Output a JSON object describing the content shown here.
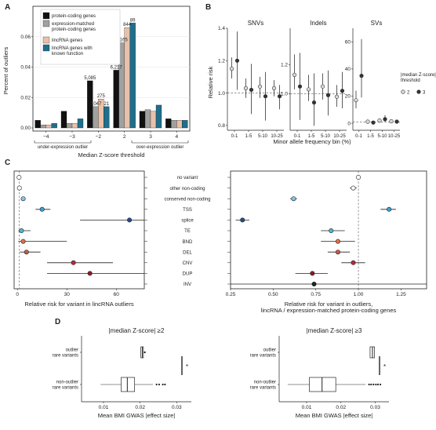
{
  "chart_data": [
    {
      "panel": "A",
      "type": "bar",
      "ylabel": "Percent of outliers",
      "xlabel": "Median Z-score threshold",
      "categories": [
        "−4",
        "−3",
        "−2",
        "2",
        "3",
        "4"
      ],
      "category_values": [
        -4,
        -3,
        -2,
        2,
        3,
        4
      ],
      "ylim": [
        0,
        0.08
      ],
      "yticks": [
        "0.00",
        "0.02",
        "0.04",
        "0.06"
      ],
      "ytick_values": [
        0,
        0.02,
        0.04,
        0.06
      ],
      "group_labels": [
        "under-expression outlier",
        "over-expression outlier"
      ],
      "series": [
        {
          "name": "protein-coding genes",
          "color": "#111111",
          "values": [
            0.005,
            0.011,
            0.031,
            0.038,
            0.011,
            0.006
          ]
        },
        {
          "name": "expression-matched protein-coding genes",
          "color": "#a0a0a0",
          "values": [
            0.002,
            0.003,
            0.014,
            0.056,
            0.012,
            0.005
          ]
        },
        {
          "name": "lincRNA genes",
          "color": "#e8c1a8",
          "values": [
            0.002,
            0.003,
            0.019,
            0.066,
            0.011,
            0.005
          ]
        },
        {
          "name": "lincRNA genes with known function",
          "color": "#1f6e8c",
          "values": [
            0.003,
            0.006,
            0.014,
            0.069,
            0.015,
            0.005
          ]
        }
      ],
      "annotations": [
        {
          "text": "5,085",
          "category": "−2",
          "series": 0
        },
        {
          "text": "1,047",
          "category": "−2",
          "series": 1
        },
        {
          "text": "275",
          "category": "−2",
          "series": 2
        },
        {
          "text": "21",
          "category": "−2",
          "series": 3
        },
        {
          "text": "6,217",
          "category": "2",
          "series": 0
        },
        {
          "text": "3,165",
          "category": "2",
          "series": 1
        },
        {
          "text": "844",
          "category": "2",
          "series": 2
        },
        {
          "text": "89",
          "category": "2",
          "series": 3
        }
      ]
    },
    {
      "panel": "B",
      "type": "scatter",
      "ylabel": "Relative risk",
      "xlabel": "Minor allele frequency bin (%)",
      "x_categories": [
        "0-1",
        "1-5",
        "5-10",
        "10-25"
      ],
      "legend_title": "|median Z-score|\nthreshold",
      "legend_entries": [
        {
          "label": "2",
          "fill": "#d9d9d9"
        },
        {
          "label": "3",
          "fill": "#333333"
        }
      ],
      "facets": [
        {
          "title": "SNVs",
          "ylim": [
            0.78,
            1.4
          ],
          "yticks": [
            "0.8",
            "1.0",
            "1.2",
            "1.4"
          ],
          "ytick_values": [
            0.8,
            1.0,
            1.2,
            1.4
          ],
          "points": [
            {
              "bin": "0-1",
              "threshold": "2",
              "y": 1.15,
              "lo": 1.09,
              "hi": 1.22
            },
            {
              "bin": "0-1",
              "threshold": "3",
              "y": 1.2,
              "lo": 1.02,
              "hi": 1.38
            },
            {
              "bin": "1-5",
              "threshold": "2",
              "y": 1.03,
              "lo": 0.97,
              "hi": 1.09
            },
            {
              "bin": "1-5",
              "threshold": "3",
              "y": 1.02,
              "lo": 0.87,
              "hi": 1.18
            },
            {
              "bin": "5-10",
              "threshold": "2",
              "y": 1.04,
              "lo": 0.97,
              "hi": 1.1
            },
            {
              "bin": "5-10",
              "threshold": "3",
              "y": 0.98,
              "lo": 0.83,
              "hi": 1.13
            },
            {
              "bin": "10-25",
              "threshold": "2",
              "y": 1.03,
              "lo": 0.98,
              "hi": 1.08
            },
            {
              "bin": "10-25",
              "threshold": "3",
              "y": 0.98,
              "lo": 0.9,
              "hi": 1.05
            }
          ]
        },
        {
          "title": "Indels",
          "ylim": [
            0.76,
            1.45
          ],
          "yticks": [
            "1.0",
            "1.2"
          ],
          "ytick_values": [
            1.0,
            1.2
          ],
          "points": [
            {
              "bin": "0-1",
              "threshold": "2",
              "y": 1.13,
              "lo": 1.03,
              "hi": 1.27
            },
            {
              "bin": "0-1",
              "threshold": "3",
              "y": 1.05,
              "lo": 0.82,
              "hi": 1.28
            },
            {
              "bin": "1-5",
              "threshold": "2",
              "y": 1.03,
              "lo": 0.95,
              "hi": 1.13
            },
            {
              "bin": "1-5",
              "threshold": "3",
              "y": 0.94,
              "lo": 0.78,
              "hi": 1.14
            },
            {
              "bin": "5-10",
              "threshold": "2",
              "y": 1.05,
              "lo": 0.96,
              "hi": 1.14
            },
            {
              "bin": "5-10",
              "threshold": "3",
              "y": 0.99,
              "lo": 0.85,
              "hi": 1.16
            },
            {
              "bin": "10-25",
              "threshold": "2",
              "y": 0.98,
              "lo": 0.91,
              "hi": 1.06
            },
            {
              "bin": "10-25",
              "threshold": "3",
              "y": 1.02,
              "lo": 0.9,
              "hi": 1.15
            }
          ]
        },
        {
          "title": "SVs",
          "ylim": [
            -4,
            70
          ],
          "yticks": [
            "0",
            "20",
            "40",
            "60"
          ],
          "ytick_values": [
            0,
            20,
            40,
            60
          ],
          "points": [
            {
              "bin": "0-1",
              "threshold": "2",
              "y": 17,
              "lo": 11,
              "hi": 24
            },
            {
              "bin": "0-1",
              "threshold": "3",
              "y": 35,
              "lo": 19,
              "hi": 62
            },
            {
              "bin": "1-5",
              "threshold": "2",
              "y": 1.2,
              "lo": 0.5,
              "hi": 2
            },
            {
              "bin": "1-5",
              "threshold": "3",
              "y": 0.5,
              "lo": 0,
              "hi": 1.5
            },
            {
              "bin": "5-10",
              "threshold": "2",
              "y": 2,
              "lo": 1,
              "hi": 3.5
            },
            {
              "bin": "5-10",
              "threshold": "3",
              "y": 3,
              "lo": 1,
              "hi": 6
            },
            {
              "bin": "10-25",
              "threshold": "2",
              "y": 1.5,
              "lo": 0.8,
              "hi": 2.5
            },
            {
              "bin": "10-25",
              "threshold": "3",
              "y": 1.2,
              "lo": 0.3,
              "hi": 2.5
            }
          ]
        }
      ]
    },
    {
      "panel": "C",
      "type": "scatter",
      "categories": [
        "no variant",
        "other non-coding",
        "conserved non-coding",
        "TSS",
        "splice",
        "TE",
        "BND",
        "DEL",
        "CNV",
        "DUP",
        "INV"
      ],
      "colors": [
        "#ffffff",
        "#ffffff",
        "#7fc8e6",
        "#3aa0d0",
        "#1f4e8c",
        "#4ab8d8",
        "#e57048",
        "#c85a4a",
        "#b82a3a",
        "#8a1a2a",
        "#222222"
      ],
      "left": {
        "xlabel": "Relative risk for variant in lincRNA outliers",
        "xlim": [
          -2,
          77
        ],
        "xticks": [
          "0",
          "30",
          "60"
        ],
        "xtick_values": [
          0,
          30,
          60
        ],
        "values": [
          1,
          1.2,
          3.5,
          15,
          68,
          2.5,
          3.5,
          5.5,
          34,
          44,
          null
        ],
        "ci_lo": [
          0.9,
          0.8,
          2.5,
          11,
          38,
          0.5,
          0.5,
          1.5,
          18,
          18,
          null
        ],
        "ci_hi": [
          1.1,
          1.6,
          4.5,
          20,
          100,
          8,
          30,
          14,
          58,
          93,
          null
        ]
      },
      "right": {
        "xlabel": "Relative risk for variant in outliers,\nlincRNA / expression-matched protein-coding genes",
        "xlim": [
          0.25,
          1.4
        ],
        "xticks": [
          "0.25",
          "0.50",
          "0.75",
          "1.00",
          "1.25"
        ],
        "xtick_values": [
          0.25,
          0.5,
          0.75,
          1.0,
          1.25
        ],
        "values": [
          1.0,
          0.97,
          0.62,
          1.18,
          0.32,
          0.84,
          0.88,
          0.88,
          0.97,
          0.73,
          0.74
        ],
        "ci_lo": [
          0.99,
          0.95,
          0.6,
          1.13,
          0.28,
          0.78,
          0.78,
          0.82,
          0.9,
          0.63,
          0.05
        ],
        "ci_hi": [
          1.01,
          0.99,
          0.64,
          1.22,
          0.36,
          0.92,
          0.98,
          0.95,
          1.04,
          0.82,
          1.5
        ]
      }
    },
    {
      "panel": "D",
      "type": "boxplot",
      "xlabel": "Mean BMI GWAS |effect size|",
      "categories": [
        "outlier\nrare variants",
        "non-outlier\nrare variants"
      ],
      "facets": [
        {
          "title": "|median Z-score| ≥2",
          "xlim": [
            0.004,
            0.034
          ],
          "xticks": [
            "0.01",
            "0.02",
            "0.03"
          ],
          "xtick_values": [
            0.01,
            0.02,
            0.03
          ],
          "boxes": [
            {
              "q1": 0.0202,
              "median": 0.0206,
              "q3": 0.0209,
              "whisker_lo": 0.0202,
              "whisker_hi": 0.0212,
              "outliers": [
                0.0213
              ]
            },
            {
              "q1": 0.0148,
              "median": 0.0165,
              "q3": 0.0185,
              "whisker_lo": 0.0092,
              "whisker_hi": 0.0235,
              "outliers": [
                0.0245,
                0.0252,
                0.0262,
                0.0268
              ]
            }
          ],
          "significance": "*"
        },
        {
          "title": "|median Z-score| ≥3",
          "xlim": [
            0.002,
            0.034
          ],
          "xticks": [
            "0.01",
            "0.02",
            "0.03"
          ],
          "xtick_values": [
            0.01,
            0.02,
            0.03
          ],
          "boxes": [
            {
              "q1": 0.0285,
              "median": 0.0292,
              "q3": 0.0298,
              "whisker_lo": 0.0285,
              "whisker_hi": 0.0298,
              "outliers": []
            },
            {
              "q1": 0.0108,
              "median": 0.0145,
              "q3": 0.0185,
              "whisker_lo": 0.0045,
              "whisker_hi": 0.0272,
              "outliers": [
                0.0282,
                0.0288,
                0.0295,
                0.0302,
                0.0308,
                0.0315
              ]
            }
          ],
          "significance": "*"
        }
      ]
    }
  ]
}
